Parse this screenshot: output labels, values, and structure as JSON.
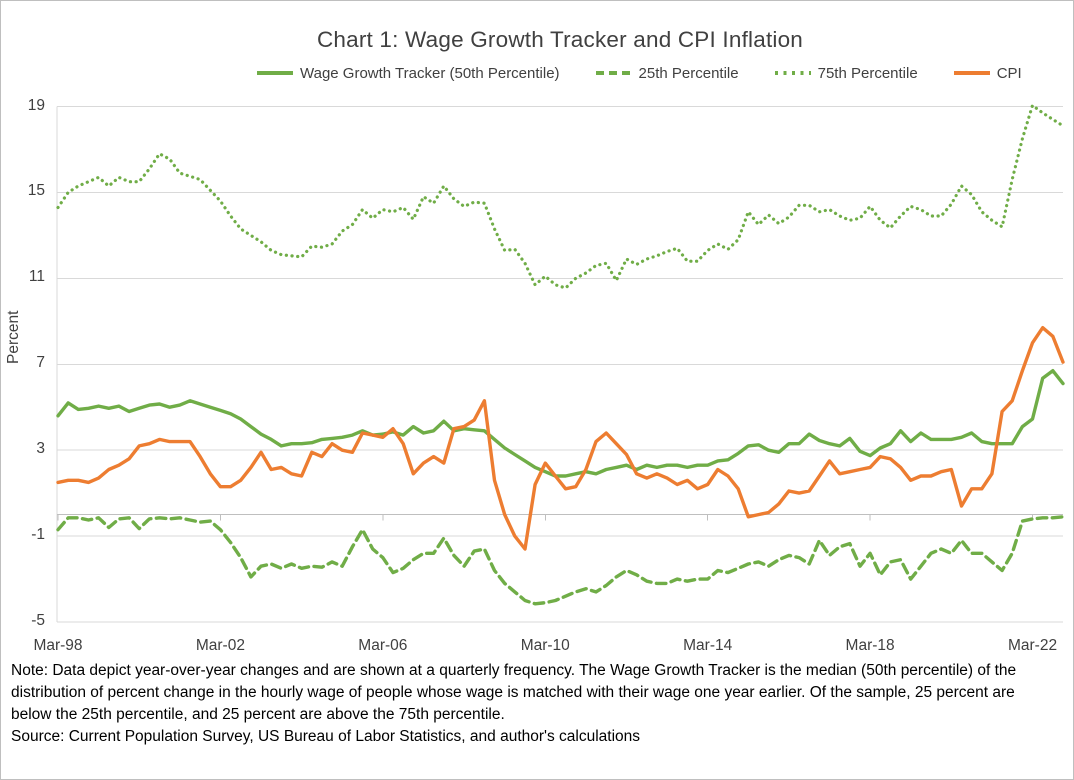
{
  "title": "Chart 1: Wage Growth Tracker and CPI Inflation",
  "legend": {
    "items": [
      {
        "label": "Wage Growth Tracker (50th Percentile)",
        "style": "solid",
        "color": "#70AD47"
      },
      {
        "label": "25th Percentile",
        "style": "dashed",
        "color": "#70AD47"
      },
      {
        "label": "75th Percentile",
        "style": "dotted",
        "color": "#70AD47"
      },
      {
        "label": "CPI",
        "style": "solid",
        "color": "#ED7D31"
      }
    ]
  },
  "axes": {
    "y_label": "Percent",
    "y_ticks": [
      19,
      15,
      11,
      7,
      3,
      -1,
      -5
    ],
    "x_ticks": [
      {
        "label": "Mar-98",
        "q": 0
      },
      {
        "label": "Mar-02",
        "q": 16
      },
      {
        "label": "Mar-06",
        "q": 32
      },
      {
        "label": "Mar-10",
        "q": 48
      },
      {
        "label": "Mar-14",
        "q": 64
      },
      {
        "label": "Mar-18",
        "q": 80
      },
      {
        "label": "Mar-22",
        "q": 96
      }
    ]
  },
  "note_lines": [
    "Note: Data depict year-over-year changes and are shown at a quarterly frequency. The Wage Growth Tracker is the median (50th percentile) of the",
    "distribution of percent change in the hourly wage of people whose wage is matched with their wage one year earlier. Of the sample, 25 percent are",
    "below the 25th percentile, and 25 percent are above the 75th percentile."
  ],
  "source_line": "Source: Current Population Survey, US Bureau of Labor Statistics, and author's calculations",
  "colors": {
    "green": "#70AD47",
    "orange": "#ED7D31",
    "gridline": "#D9D9D9",
    "axis": "#BFBFBF",
    "heading_text": "#404040",
    "note_text": "#000000"
  },
  "chart_data": {
    "type": "line",
    "title": "Chart 1: Wage Growth Tracker and CPI Inflation",
    "xlabel": "",
    "ylabel": "Percent",
    "ylim": [
      -5,
      19
    ],
    "grid": "horizontal",
    "legend_position": "top",
    "frequency": "quarterly",
    "start": "Mar-98",
    "end": "Dec-22",
    "series": [
      {
        "name": "Wage Growth Tracker (50th Percentile)",
        "style": "solid",
        "color": "#70AD47",
        "values": [
          4.6,
          5.2,
          4.9,
          4.95,
          5.05,
          4.95,
          5.05,
          4.8,
          4.95,
          5.1,
          5.15,
          5.0,
          5.1,
          5.3,
          5.15,
          5.0,
          4.85,
          4.7,
          4.45,
          4.1,
          3.75,
          3.5,
          3.2,
          3.3,
          3.3,
          3.35,
          3.5,
          3.55,
          3.6,
          3.7,
          3.9,
          3.7,
          3.75,
          3.85,
          3.7,
          4.1,
          3.8,
          3.9,
          4.35,
          3.9,
          4.0,
          3.95,
          3.9,
          3.5,
          3.1,
          2.8,
          2.5,
          2.2,
          2.0,
          1.8,
          1.8,
          1.9,
          2.0,
          1.9,
          2.1,
          2.2,
          2.3,
          2.1,
          2.3,
          2.2,
          2.3,
          2.3,
          2.2,
          2.3,
          2.3,
          2.5,
          2.55,
          2.85,
          3.2,
          3.25,
          3.0,
          2.9,
          3.3,
          3.3,
          3.75,
          3.45,
          3.3,
          3.2,
          3.55,
          2.95,
          2.75,
          3.1,
          3.3,
          3.9,
          3.4,
          3.8,
          3.5,
          3.5,
          3.5,
          3.6,
          3.8,
          3.4,
          3.3,
          3.3,
          3.3,
          4.1,
          4.45,
          6.35,
          6.7,
          6.1
        ]
      },
      {
        "name": "25th Percentile",
        "style": "dashed",
        "color": "#70AD47",
        "values": [
          -0.7,
          -0.15,
          -0.15,
          -0.25,
          -0.15,
          -0.6,
          -0.2,
          -0.15,
          -0.65,
          -0.2,
          -0.15,
          -0.2,
          -0.15,
          -0.25,
          -0.35,
          -0.3,
          -0.7,
          -1.3,
          -2.0,
          -2.9,
          -2.4,
          -2.3,
          -2.5,
          -2.3,
          -2.5,
          -2.4,
          -2.45,
          -2.2,
          -2.4,
          -1.5,
          -0.7,
          -1.6,
          -2.0,
          -2.7,
          -2.5,
          -2.1,
          -1.8,
          -1.8,
          -1.1,
          -1.9,
          -2.4,
          -1.7,
          -1.6,
          -2.6,
          -3.2,
          -3.6,
          -4.0,
          -4.15,
          -4.1,
          -4.0,
          -3.8,
          -3.6,
          -3.45,
          -3.6,
          -3.3,
          -2.9,
          -2.6,
          -2.8,
          -3.1,
          -3.2,
          -3.2,
          -3.0,
          -3.1,
          -3.0,
          -3.0,
          -2.6,
          -2.7,
          -2.5,
          -2.3,
          -2.2,
          -2.4,
          -2.1,
          -1.9,
          -2.0,
          -2.3,
          -1.2,
          -1.9,
          -1.5,
          -1.35,
          -2.4,
          -1.8,
          -2.8,
          -2.2,
          -2.1,
          -3.0,
          -2.4,
          -1.8,
          -1.6,
          -1.8,
          -1.2,
          -1.8,
          -1.8,
          -2.2,
          -2.6,
          -1.8,
          -0.3,
          -0.2,
          -0.15,
          -0.15,
          -0.1
        ]
      },
      {
        "name": "75th Percentile",
        "style": "dotted",
        "color": "#70AD47",
        "values": [
          14.3,
          15.0,
          15.3,
          15.5,
          15.7,
          15.3,
          15.7,
          15.5,
          15.5,
          16.1,
          16.8,
          16.55,
          15.9,
          15.75,
          15.6,
          15.1,
          14.6,
          13.9,
          13.3,
          13.0,
          12.7,
          12.3,
          12.1,
          12.05,
          12.0,
          12.5,
          12.45,
          12.6,
          13.2,
          13.5,
          14.2,
          13.8,
          14.2,
          14.1,
          14.3,
          13.75,
          14.8,
          14.5,
          15.3,
          14.7,
          14.35,
          14.55,
          14.5,
          13.3,
          12.3,
          12.35,
          11.7,
          10.7,
          11.1,
          10.7,
          10.55,
          11.0,
          11.25,
          11.6,
          11.7,
          10.9,
          11.9,
          11.65,
          11.9,
          12.05,
          12.25,
          12.4,
          11.8,
          11.8,
          12.3,
          12.6,
          12.35,
          12.8,
          14.1,
          13.5,
          13.95,
          13.55,
          13.85,
          14.4,
          14.4,
          14.1,
          14.2,
          13.9,
          13.7,
          13.8,
          14.35,
          13.7,
          13.35,
          13.9,
          14.35,
          14.2,
          13.9,
          13.9,
          14.45,
          15.3,
          14.9,
          14.1,
          13.7,
          13.4,
          15.6,
          17.5,
          19.05,
          18.7,
          18.4,
          18.1
        ]
      },
      {
        "name": "CPI",
        "style": "solid",
        "color": "#ED7D31",
        "values": [
          1.5,
          1.6,
          1.6,
          1.5,
          1.7,
          2.1,
          2.3,
          2.6,
          3.2,
          3.3,
          3.5,
          3.4,
          3.4,
          3.4,
          2.7,
          1.9,
          1.3,
          1.3,
          1.6,
          2.2,
          2.9,
          2.1,
          2.2,
          1.9,
          1.8,
          2.9,
          2.7,
          3.3,
          3.0,
          2.9,
          3.8,
          3.7,
          3.6,
          4.0,
          3.3,
          1.9,
          2.4,
          2.7,
          2.4,
          4.0,
          4.1,
          4.4,
          5.3,
          1.6,
          0.0,
          -1.0,
          -1.6,
          1.4,
          2.4,
          1.8,
          1.2,
          1.3,
          2.1,
          3.4,
          3.8,
          3.3,
          2.8,
          1.9,
          1.7,
          1.9,
          1.7,
          1.4,
          1.6,
          1.2,
          1.4,
          2.1,
          1.8,
          1.2,
          -0.1,
          0.0,
          0.1,
          0.5,
          1.1,
          1.0,
          1.1,
          1.8,
          2.5,
          1.9,
          2.0,
          2.1,
          2.2,
          2.7,
          2.6,
          2.2,
          1.6,
          1.8,
          1.8,
          2.0,
          2.1,
          0.4,
          1.2,
          1.2,
          1.9,
          4.8,
          5.3,
          6.7,
          8.0,
          8.7,
          8.3,
          7.1
        ]
      }
    ]
  }
}
